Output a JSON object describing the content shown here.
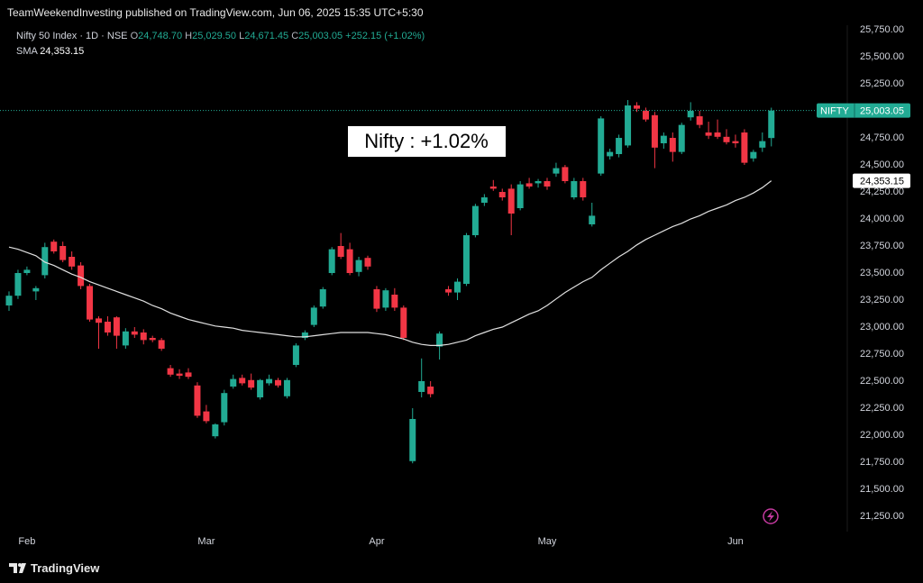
{
  "chart_data": {
    "type": "candlestick",
    "header": "TeamWeekendInvesting published on TradingView.com, Jun 06, 2025 15:35 UTC+5:30",
    "legend": {
      "symbol": "Nifty 50 Index · 1D · NSE",
      "open_key": "O",
      "open": "24,748.70",
      "high_key": "H",
      "high": "25,029.50",
      "low_key": "L",
      "low": "24,671.45",
      "close_key": "C",
      "close": "25,003.05",
      "change": "+252.15 (+1.02%)"
    },
    "annotation": "Nifty : +1.02%",
    "last_label": {
      "name": "NIFTY",
      "value": "25,003.05"
    },
    "sma_label": "24,353.15",
    "footer": "TradingView",
    "up_color": "#22ab94",
    "down_color": "#f23645",
    "grid": false,
    "categories": [
      null,
      null,
      "Feb",
      null,
      null,
      null,
      null,
      null,
      null,
      null,
      null,
      null,
      null,
      null,
      null,
      null,
      null,
      null,
      null,
      null,
      null,
      null,
      "Mar",
      null,
      null,
      null,
      null,
      null,
      null,
      null,
      null,
      null,
      null,
      null,
      null,
      null,
      null,
      null,
      null,
      null,
      null,
      "Apr",
      null,
      null,
      null,
      null,
      null,
      null,
      null,
      null,
      null,
      null,
      null,
      null,
      null,
      null,
      null,
      null,
      null,
      null,
      "May",
      null,
      null,
      null,
      null,
      null,
      null,
      null,
      null,
      null,
      null,
      null,
      null,
      null,
      null,
      null,
      null,
      null,
      null,
      null,
      null,
      "Jun",
      null,
      null,
      null,
      null
    ],
    "ohlc": [
      [
        23200,
        23330,
        23150,
        23290
      ],
      [
        23290,
        23530,
        23260,
        23500
      ],
      [
        23500,
        23560,
        23480,
        23530
      ],
      [
        23330,
        23380,
        23250,
        23360
      ],
      [
        23480,
        23780,
        23450,
        23740
      ],
      [
        23790,
        23810,
        23680,
        23700
      ],
      [
        23750,
        23790,
        23600,
        23620
      ],
      [
        23650,
        23700,
        23530,
        23560
      ],
      [
        23570,
        23600,
        23350,
        23380
      ],
      [
        23380,
        23400,
        23050,
        23070
      ],
      [
        23080,
        23100,
        22800,
        23040
      ],
      [
        23050,
        23100,
        22920,
        22950
      ],
      [
        23090,
        23100,
        22800,
        22920
      ],
      [
        22830,
        22990,
        22800,
        22960
      ],
      [
        22960,
        23000,
        22900,
        22930
      ],
      [
        22950,
        22980,
        22840,
        22880
      ],
      [
        22900,
        22920,
        22860,
        22880
      ],
      [
        22880,
        22900,
        22780,
        22800
      ],
      [
        22620,
        22650,
        22540,
        22560
      ],
      [
        22570,
        22610,
        22520,
        22550
      ],
      [
        22580,
        22620,
        22520,
        22540
      ],
      [
        22460,
        22490,
        22160,
        22180
      ],
      [
        22220,
        22280,
        22110,
        22130
      ],
      [
        21990,
        22110,
        21970,
        22100
      ],
      [
        22120,
        22420,
        22090,
        22390
      ],
      [
        22450,
        22560,
        22430,
        22520
      ],
      [
        22530,
        22560,
        22460,
        22480
      ],
      [
        22510,
        22570,
        22420,
        22440
      ],
      [
        22350,
        22520,
        22330,
        22510
      ],
      [
        22480,
        22560,
        22460,
        22520
      ],
      [
        22510,
        22530,
        22440,
        22460
      ],
      [
        22360,
        22530,
        22340,
        22510
      ],
      [
        22650,
        22850,
        22630,
        22830
      ],
      [
        22900,
        22970,
        22880,
        22950
      ],
      [
        23020,
        23200,
        23000,
        23180
      ],
      [
        23190,
        23370,
        23170,
        23350
      ],
      [
        23500,
        23740,
        23480,
        23720
      ],
      [
        23750,
        23870,
        23630,
        23650
      ],
      [
        23720,
        23780,
        23480,
        23500
      ],
      [
        23510,
        23650,
        23470,
        23620
      ],
      [
        23640,
        23660,
        23530,
        23560
      ],
      [
        23350,
        23380,
        23140,
        23170
      ],
      [
        23180,
        23360,
        23150,
        23340
      ],
      [
        23300,
        23360,
        23150,
        23180
      ],
      [
        23180,
        23200,
        22880,
        22900
      ],
      [
        21760,
        22250,
        21740,
        22150
      ],
      [
        22400,
        22710,
        22350,
        22500
      ],
      [
        22450,
        22500,
        22350,
        22380
      ],
      [
        22820,
        22960,
        22700,
        22940
      ],
      [
        23350,
        23380,
        23290,
        23320
      ],
      [
        23320,
        23450,
        23250,
        23420
      ],
      [
        23400,
        23870,
        23380,
        23850
      ],
      [
        23850,
        24140,
        23830,
        24120
      ],
      [
        24150,
        24230,
        24120,
        24200
      ],
      [
        24300,
        24360,
        24260,
        24280
      ],
      [
        24250,
        24280,
        24170,
        24200
      ],
      [
        24280,
        24320,
        23850,
        24050
      ],
      [
        24100,
        24350,
        24080,
        24320
      ],
      [
        24330,
        24380,
        24280,
        24300
      ],
      [
        24330,
        24370,
        24290,
        24350
      ],
      [
        24350,
        24380,
        24270,
        24300
      ],
      [
        24420,
        24520,
        24390,
        24470
      ],
      [
        24480,
        24500,
        24330,
        24350
      ],
      [
        24200,
        24380,
        24180,
        24350
      ],
      [
        24350,
        24380,
        24170,
        24200
      ],
      [
        23950,
        24150,
        23930,
        24030
      ],
      [
        24420,
        24950,
        24400,
        24930
      ],
      [
        24580,
        24650,
        24550,
        24620
      ],
      [
        24600,
        24780,
        24570,
        24750
      ],
      [
        24680,
        25100,
        24660,
        25050
      ],
      [
        25050,
        25080,
        24990,
        25020
      ],
      [
        25000,
        25030,
        24900,
        24920
      ],
      [
        24960,
        24990,
        24470,
        24660
      ],
      [
        24700,
        24800,
        24650,
        24770
      ],
      [
        24750,
        24800,
        24530,
        24620
      ],
      [
        24620,
        24890,
        24600,
        24870
      ],
      [
        24940,
        25080,
        24910,
        25000
      ],
      [
        24950,
        25000,
        24840,
        24870
      ],
      [
        24800,
        24900,
        24740,
        24770
      ],
      [
        24800,
        24920,
        24740,
        24760
      ],
      [
        24760,
        24830,
        24690,
        24710
      ],
      [
        24720,
        24780,
        24660,
        24700
      ],
      [
        24800,
        24830,
        24500,
        24520
      ],
      [
        24560,
        24640,
        24530,
        24620
      ],
      [
        24660,
        24800,
        24620,
        24720
      ],
      [
        24748.7,
        25029.5,
        24671.45,
        25003.05
      ]
    ],
    "sma": {
      "name": "SMA",
      "color": "#e0e0e0",
      "values": [
        23740,
        23720,
        23690,
        23660,
        23600,
        23570,
        23530,
        23490,
        23460,
        23420,
        23390,
        23360,
        23330,
        23300,
        23270,
        23240,
        23200,
        23170,
        23130,
        23100,
        23070,
        23050,
        23030,
        23010,
        23000,
        22990,
        22970,
        22960,
        22950,
        22940,
        22930,
        22920,
        22910,
        22910,
        22920,
        22930,
        22940,
        22950,
        22950,
        22950,
        22950,
        22940,
        22930,
        22910,
        22890,
        22860,
        22840,
        22830,
        22830,
        22840,
        22860,
        22880,
        22920,
        22950,
        22980,
        23000,
        23040,
        23080,
        23120,
        23150,
        23200,
        23260,
        23320,
        23370,
        23420,
        23460,
        23530,
        23590,
        23650,
        23700,
        23760,
        23810,
        23850,
        23890,
        23930,
        23960,
        24000,
        24030,
        24070,
        24100,
        24130,
        24170,
        24200,
        24240,
        24290,
        24353.15
      ]
    },
    "ylim": [
      21108,
      25792
    ],
    "yticks": [
      {
        "value": 21250,
        "label": "21,250.00"
      },
      {
        "value": 21500,
        "label": "21,500.00"
      },
      {
        "value": 21750,
        "label": "21,750.00"
      },
      {
        "value": 22000,
        "label": "22,000.00"
      },
      {
        "value": 22250,
        "label": "22,250.00"
      },
      {
        "value": 22500,
        "label": "22,500.00"
      },
      {
        "value": 22750,
        "label": "22,750.00"
      },
      {
        "value": 23000,
        "label": "23,000.00"
      },
      {
        "value": 23250,
        "label": "23,250.00"
      },
      {
        "value": 23500,
        "label": "23,500.00"
      },
      {
        "value": 23750,
        "label": "23,750.00"
      },
      {
        "value": 24000,
        "label": "24,000.00"
      },
      {
        "value": 24250,
        "label": "24,250.00"
      },
      {
        "value": 24500,
        "label": "24,500.00"
      },
      {
        "value": 24750,
        "label": "24,750.00"
      },
      {
        "value": 25000,
        "label": "25,000.00"
      },
      {
        "value": 25250,
        "label": "25,250.00"
      },
      {
        "value": 25500,
        "label": "25,500.00"
      },
      {
        "value": 25750,
        "label": "25,750.00"
      }
    ]
  }
}
